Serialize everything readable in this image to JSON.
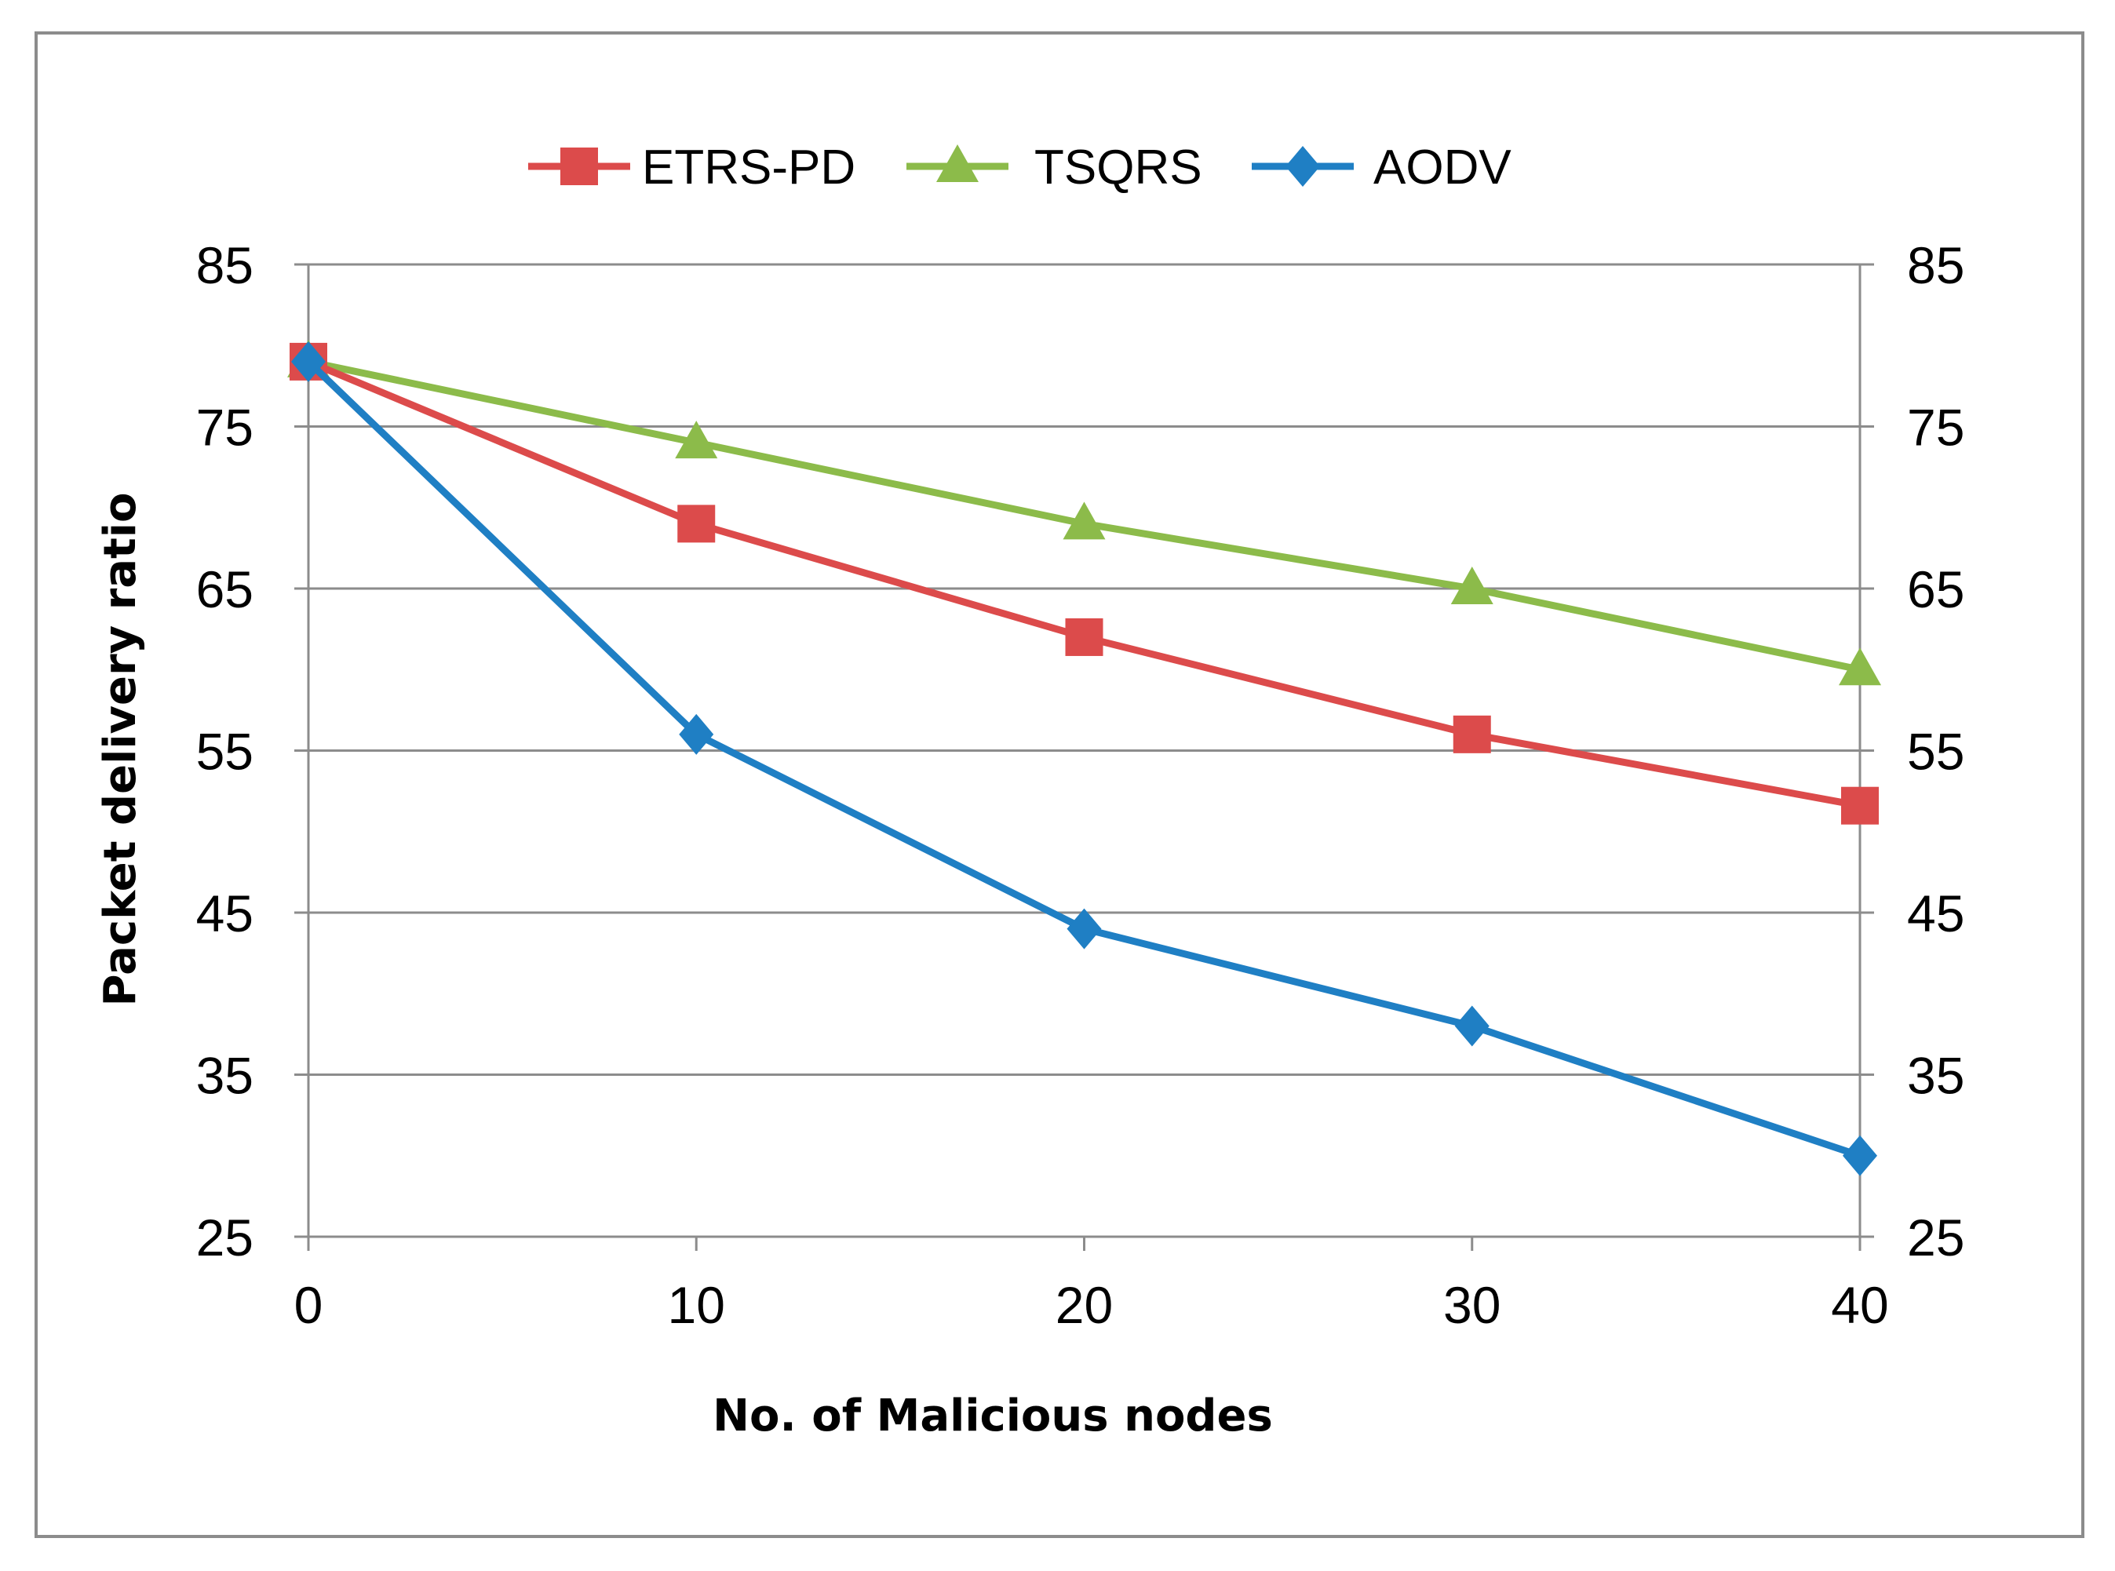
{
  "chart_data": {
    "type": "line",
    "title": "",
    "xlabel": "No. of  Malicious nodes",
    "ylabel": "Packet delivery ratio",
    "x": [
      0,
      10,
      20,
      30,
      40
    ],
    "xlim": [
      0,
      40
    ],
    "ylim": [
      25,
      85
    ],
    "y_ticks": [
      25,
      35,
      45,
      55,
      65,
      75,
      85
    ],
    "x_ticks": [
      0,
      10,
      20,
      30,
      40
    ],
    "secondary_y_axis": true,
    "grid": "horizontal",
    "legend_position": "top-center",
    "series": [
      {
        "name": "ETRS-PD",
        "marker": "square",
        "color": "#dc4b4b",
        "values": [
          79,
          69,
          62,
          56,
          51.6
        ]
      },
      {
        "name": "TSQRS",
        "marker": "triangle",
        "color": "#8cbb4a",
        "values": [
          79,
          74,
          69,
          65,
          60
        ]
      },
      {
        "name": "AODV",
        "marker": "diamond",
        "color": "#1f7fc4",
        "values": [
          79,
          56,
          44,
          38,
          30
        ]
      }
    ]
  }
}
